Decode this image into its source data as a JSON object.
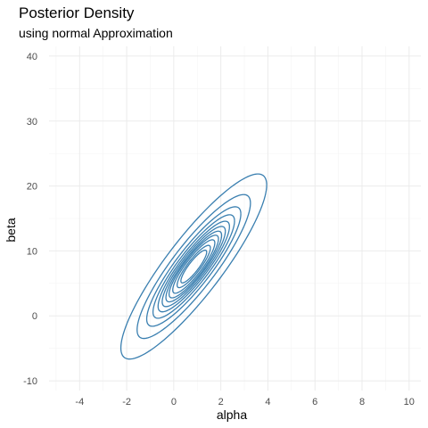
{
  "chart_data": {
    "type": "contour",
    "title": "Posterior Density",
    "subtitle": "using normal Approximation",
    "xlabel": "alpha",
    "ylabel": "beta",
    "xlim": [
      -5.3,
      10.5
    ],
    "ylim": [
      -11.5,
      41.5
    ],
    "x_ticks": [
      -4,
      -2,
      0,
      2,
      4,
      6,
      8,
      10
    ],
    "y_ticks": [
      -10,
      0,
      10,
      20,
      30,
      40
    ],
    "grid": true,
    "line_color": "#3a7fb0",
    "density": {
      "mean": [
        0.85,
        7.6
      ],
      "sd": [
        1.0,
        4.6
      ],
      "correlation": 0.88
    },
    "contour_levels": [
      0.15,
      0.25,
      0.4,
      0.55,
      0.7,
      0.9,
      1.15,
      1.5,
      2.0,
      2.9,
      4.8
    ],
    "contour_level_unit": "mahalanobis_sq_halves"
  }
}
